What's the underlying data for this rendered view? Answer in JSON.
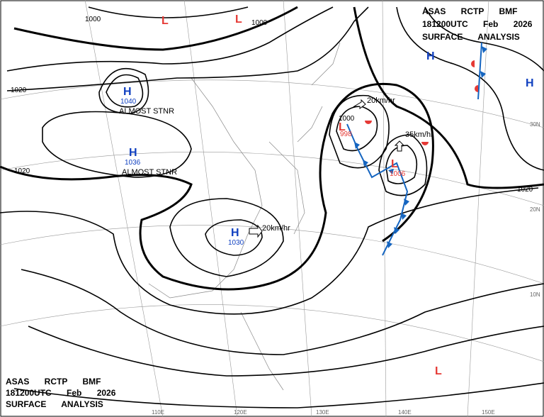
{
  "header": {
    "lines": [
      "ASAS RCTP BMF",
      "181200UTC Feb 2026",
      "SURFACE ANALYSIS"
    ]
  },
  "footer": {
    "lines": [
      "ASAS RCTP BMF",
      "181200UTC Feb 2026",
      "SURFACE ANALYSIS"
    ]
  },
  "pressure_centers": [
    {
      "symbol": "H",
      "value": "1040"
    },
    {
      "symbol": "H",
      "value": "1036"
    },
    {
      "symbol": "H",
      "value": "1030"
    },
    {
      "symbol": "L",
      "value": "998"
    },
    {
      "symbol": "L",
      "value": "1006"
    },
    {
      "symbol": "L"
    },
    {
      "symbol": "L"
    },
    {
      "symbol": "L"
    },
    {
      "symbol": "H"
    },
    {
      "symbol": "H"
    }
  ],
  "annotations": [
    "ALMOST STNR",
    "ALMOST STNR",
    "20km/hr",
    "20km/hr",
    "35km/hr"
  ],
  "isobar_labels": [
    "1000",
    "1000",
    "1020",
    "1020",
    "1020",
    "1000"
  ],
  "grid_labels": [
    "30N",
    "20N",
    "10N",
    "110E",
    "120E",
    "130E",
    "140E",
    "150E"
  ]
}
